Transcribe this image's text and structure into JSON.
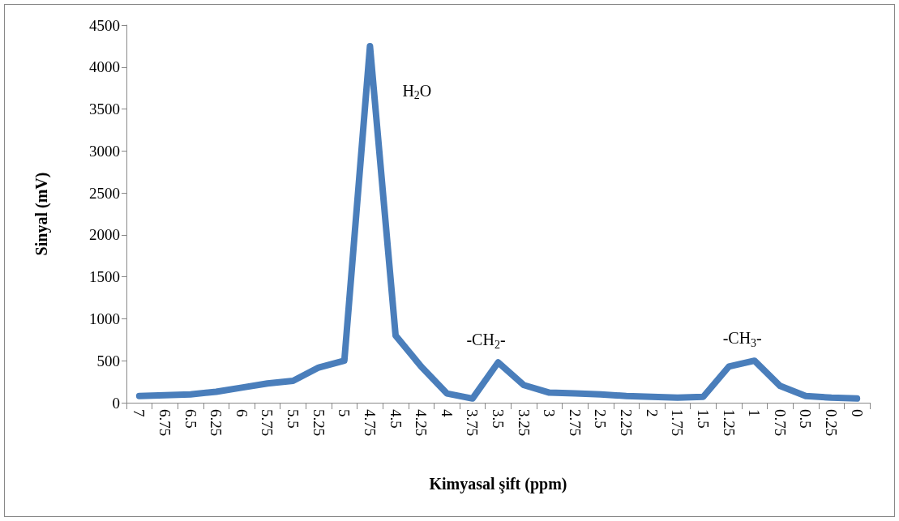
{
  "chart_data": {
    "type": "line",
    "xlabel": "Kimyasal şift (ppm)",
    "ylabel": "Sinyal (mV)",
    "categories": [
      "7",
      "6.75",
      "6.5",
      "6.25",
      "6",
      "5.75",
      "5.5",
      "5.25",
      "5",
      "4.75",
      "4.5",
      "4.25",
      "4",
      "3.75",
      "3.5",
      "3.25",
      "3",
      "2.75",
      "2.5",
      "2.25",
      "2",
      "1.75",
      "1.5",
      "1.25",
      "1",
      "0.75",
      "0.5",
      "0.25",
      "0"
    ],
    "series": [
      {
        "color": "#4a7ebb",
        "values": [
          80,
          90,
          100,
          130,
          180,
          230,
          260,
          420,
          500,
          4250,
          800,
          430,
          110,
          50,
          480,
          210,
          120,
          110,
          100,
          80,
          70,
          60,
          70,
          430,
          500,
          200,
          80,
          60,
          50
        ]
      }
    ],
    "ylim": [
      0,
      4500
    ],
    "yticks": [
      0,
      500,
      1000,
      1500,
      2000,
      2500,
      3000,
      3500,
      4000,
      4500
    ],
    "grid": false,
    "line_style": "solid",
    "annotations": [
      {
        "text": "H$_{2}$O",
        "x": "4.75",
        "y": 4250
      },
      {
        "text": "-CH$_{2}$-",
        "x": "3.5",
        "y": 480
      },
      {
        "text": "-CH$_{3}$-",
        "x": "1",
        "y": 500
      }
    ]
  }
}
